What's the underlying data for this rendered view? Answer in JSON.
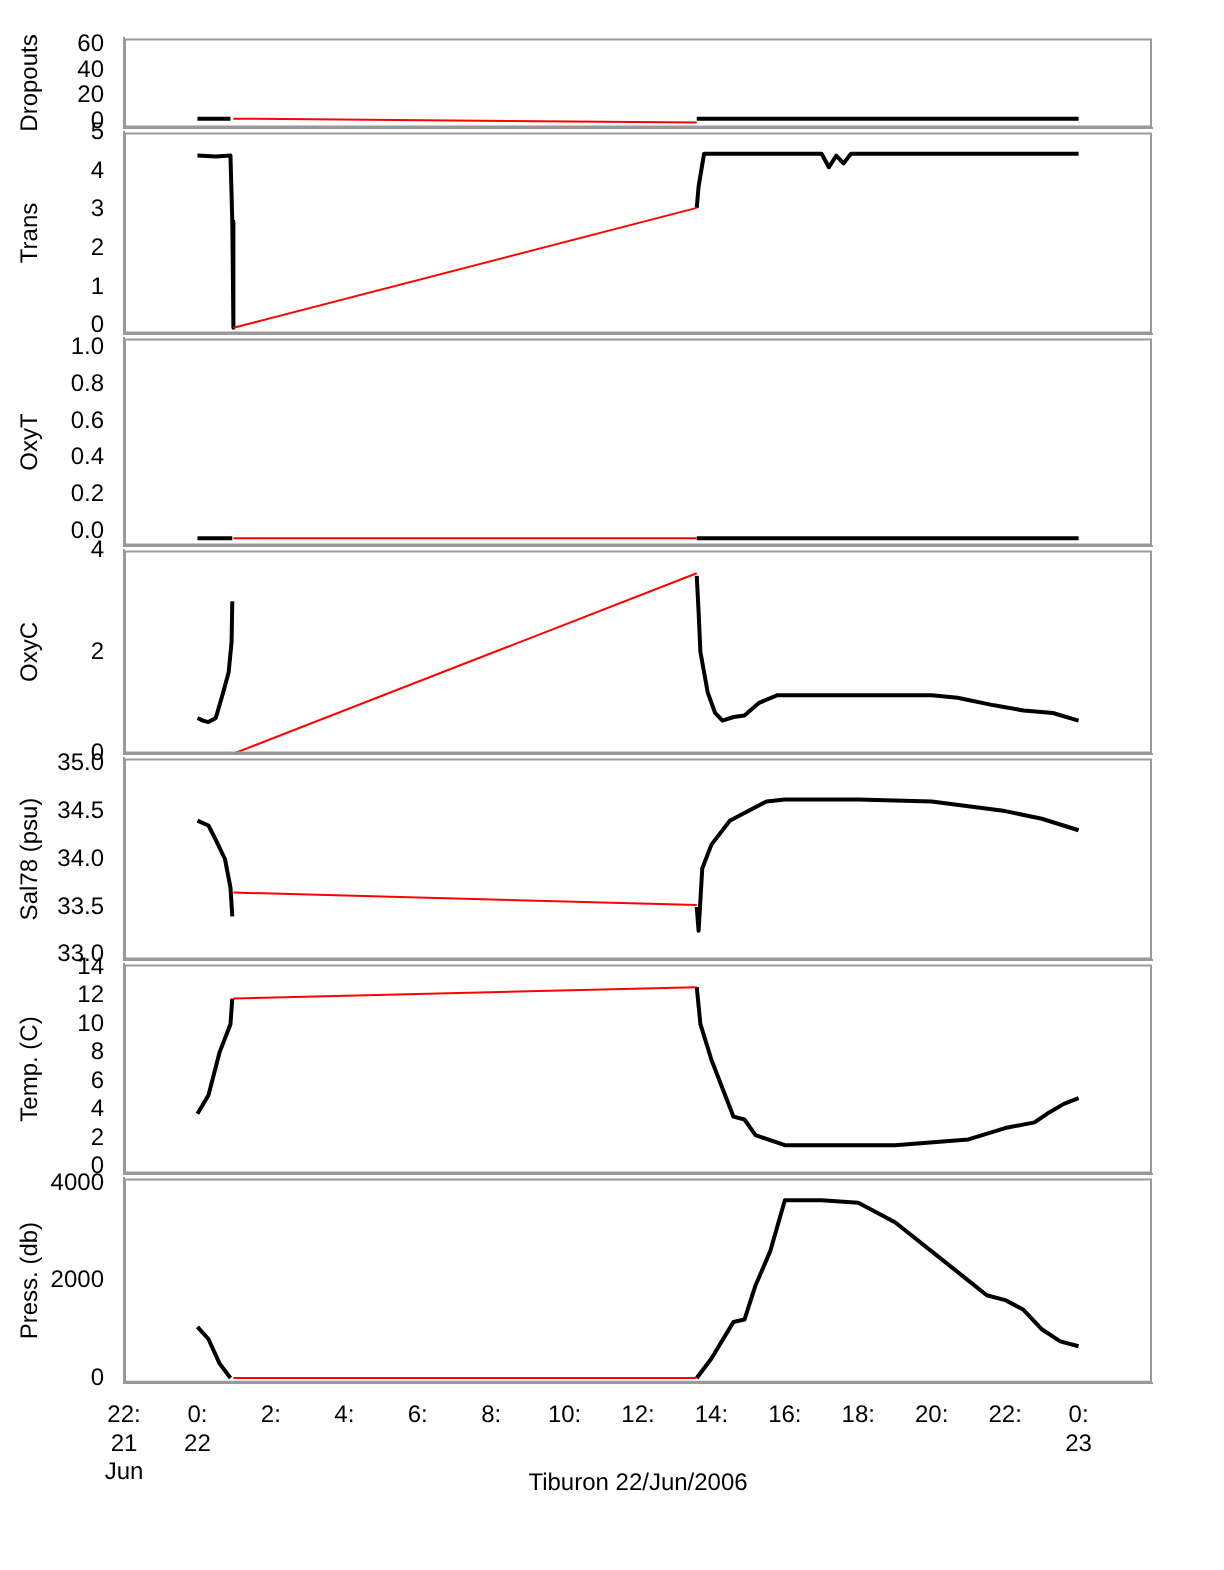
{
  "chart_data": [
    {
      "type": "line",
      "ylabel": "Dropouts",
      "xlim": [
        -2,
        26
      ],
      "ylim": [
        -5,
        65
      ],
      "yticks": [
        0,
        20,
        40,
        60
      ],
      "tick_labels": "y",
      "series": [
        {
          "color": "#000000",
          "x": [
            0,
            0.3,
            0.6,
            0.9,
            0.95,
            13.6,
            13.7,
            16,
            18,
            20,
            22,
            24
          ],
          "values": [
            2,
            2,
            2,
            2,
            null,
            2,
            2,
            2,
            2,
            2,
            2,
            2
          ]
        },
        {
          "color": "#ff0000",
          "x": [
            0.98,
            13.6
          ],
          "values": [
            2,
            -1
          ]
        }
      ]
    },
    {
      "type": "line",
      "ylabel": "Trans",
      "xlim": [
        -2,
        26
      ],
      "ylim": [
        -0.2,
        5
      ],
      "yticks": [
        0,
        1,
        2,
        3,
        4,
        5
      ],
      "tick_labels": "y",
      "series": [
        {
          "color": "#000000",
          "x": [
            0,
            0.5,
            0.9,
            0.95,
            0.98,
            5,
            13.6,
            13.65,
            13.8,
            17,
            17.2,
            17.4,
            17.6,
            17.8,
            20,
            24
          ],
          "values": [
            4.4,
            4.38,
            4.4,
            2.7,
            -0.05,
            null,
            3.05,
            3.6,
            4.45,
            4.45,
            4.1,
            4.4,
            4.2,
            4.45,
            4.45,
            4.45
          ]
        },
        {
          "color": "#ff0000",
          "x": [
            0.98,
            13.6
          ],
          "values": [
            -0.05,
            3.05
          ]
        }
      ]
    },
    {
      "type": "line",
      "ylabel": "OxyT",
      "xlim": [
        -2,
        26
      ],
      "ylim": [
        -0.08,
        1.05
      ],
      "yticks": [
        {
          "value": 0,
          "label": "0.0"
        },
        0.2,
        0.4,
        0.6,
        0.8,
        {
          "value": 1,
          "label": "1.0"
        }
      ],
      "tick_labels": "y",
      "series": [
        {
          "color": "#000000",
          "x": [
            0,
            0.95,
            5,
            13.6,
            24
          ],
          "values": [
            -0.04,
            -0.04,
            null,
            -0.04,
            -0.04
          ]
        },
        {
          "color": "#ff0000",
          "x": [
            0.98,
            13.6
          ],
          "values": [
            -0.04,
            -0.04
          ]
        }
      ]
    },
    {
      "type": "line",
      "ylabel": "OxyC",
      "xlim": [
        -2,
        26
      ],
      "ylim": [
        0,
        4
      ],
      "yticks": [
        0,
        2,
        4
      ],
      "tick_labels": "y",
      "series": [
        {
          "color": "#000000",
          "x": [
            0,
            0.15,
            0.3,
            0.5,
            0.7,
            0.85,
            0.93,
            0.95,
            5,
            13.6,
            13.65,
            13.7,
            13.9,
            14.1,
            14.3,
            14.6,
            14.9,
            15.3,
            15.8,
            18,
            20,
            20.7,
            21.7,
            22.5,
            23.3,
            24
          ],
          "values": [
            0.7,
            0.65,
            0.62,
            0.7,
            1.2,
            1.6,
            2.2,
            3.0,
            null,
            3.5,
            2.8,
            2.0,
            1.2,
            0.8,
            0.65,
            0.72,
            0.75,
            1.0,
            1.15,
            1.15,
            1.15,
            1.1,
            0.95,
            0.85,
            0.8,
            0.65
          ]
        },
        {
          "color": "#ff0000",
          "x": [
            0.98,
            13.6
          ],
          "values": [
            0,
            3.55
          ]
        }
      ]
    },
    {
      "type": "line",
      "ylabel": "Sal78 (psu)",
      "xlim": [
        -2,
        26
      ],
      "ylim": [
        32.95,
        35.05
      ],
      "yticks": [
        {
          "value": 33,
          "label": "33.0"
        },
        33.5,
        {
          "value": 34,
          "label": "34.0"
        },
        34.5,
        {
          "value": 35,
          "label": "35.0"
        }
      ],
      "tick_labels": "y",
      "series": [
        {
          "color": "#000000",
          "x": [
            0,
            0.3,
            0.5,
            0.75,
            0.9,
            0.95,
            5,
            13.6,
            13.65,
            13.75,
            14,
            14.5,
            15,
            15.5,
            16,
            18,
            20,
            21,
            22,
            23,
            24
          ],
          "values": [
            34.4,
            34.35,
            34.2,
            34.0,
            33.7,
            33.4,
            null,
            33.5,
            33.25,
            33.9,
            34.15,
            34.4,
            34.5,
            34.6,
            34.62,
            34.62,
            34.6,
            34.55,
            34.5,
            34.42,
            34.3
          ]
        },
        {
          "color": "#ff0000",
          "x": [
            0.98,
            13.6
          ],
          "values": [
            33.65,
            33.52
          ]
        }
      ]
    },
    {
      "type": "line",
      "ylabel": "Temp. (C)",
      "xlim": [
        -2,
        26
      ],
      "ylim": [
        -0.5,
        14.2
      ],
      "yticks": [
        0,
        2,
        4,
        6,
        8,
        10,
        12,
        14
      ],
      "tick_labels": "y",
      "series": [
        {
          "color": "#000000",
          "x": [
            0,
            0.3,
            0.6,
            0.9,
            0.95,
            5,
            13.6,
            13.7,
            14,
            14.3,
            14.6,
            14.9,
            15.2,
            16,
            19,
            21,
            22,
            22.8,
            23.2,
            23.6,
            24
          ],
          "values": [
            3.7,
            5,
            8,
            10,
            11.8,
            null,
            12.6,
            10,
            7.5,
            5.5,
            3.5,
            3.3,
            2.2,
            1.5,
            1.5,
            1.9,
            2.7,
            3.1,
            3.8,
            4.4,
            4.8
          ]
        },
        {
          "color": "#ff0000",
          "x": [
            0.98,
            13.6
          ],
          "values": [
            11.8,
            12.6
          ]
        }
      ]
    },
    {
      "type": "line",
      "ylabel": "Press. (db)",
      "xlabel": "Tiburon 22/Jun/2006",
      "xlim": [
        -2,
        26
      ],
      "xticks": [
        {
          "value": -2,
          "label": "22:\n21\nJun"
        },
        {
          "value": 0,
          "label": "0:\n22"
        },
        {
          "value": 2,
          "label": "2:"
        },
        {
          "value": 4,
          "label": "4:"
        },
        {
          "value": 6,
          "label": "6:"
        },
        {
          "value": 8,
          "label": "8:"
        },
        {
          "value": 10,
          "label": "10:"
        },
        {
          "value": 12,
          "label": "12:"
        },
        {
          "value": 14,
          "label": "14:"
        },
        {
          "value": 16,
          "label": "16:"
        },
        {
          "value": 18,
          "label": "18:"
        },
        {
          "value": 20,
          "label": "20:"
        },
        {
          "value": 22,
          "label": "22:"
        },
        {
          "value": 24,
          "label": "0:\n23"
        }
      ],
      "ylim": [
        -100,
        4100
      ],
      "yticks": [
        0,
        2000,
        4000
      ],
      "series": [
        {
          "color": "#000000",
          "x": [
            0,
            0.3,
            0.6,
            0.9,
            5,
            13.6,
            14,
            14.4,
            14.6,
            14.9,
            15.2,
            15.6,
            16,
            17,
            18,
            19,
            20,
            21,
            21.5,
            22,
            22.5,
            23,
            23.5,
            24
          ],
          "values": [
            1050,
            800,
            300,
            0,
            null,
            0,
            400,
            900,
            1150,
            1200,
            1900,
            2600,
            3650,
            3650,
            3600,
            3200,
            2600,
            2000,
            1700,
            1600,
            1400,
            1000,
            750,
            650
          ]
        },
        {
          "color": "#ff0000",
          "x": [
            0.98,
            13.6
          ],
          "values": [
            0,
            0
          ]
        }
      ]
    }
  ]
}
